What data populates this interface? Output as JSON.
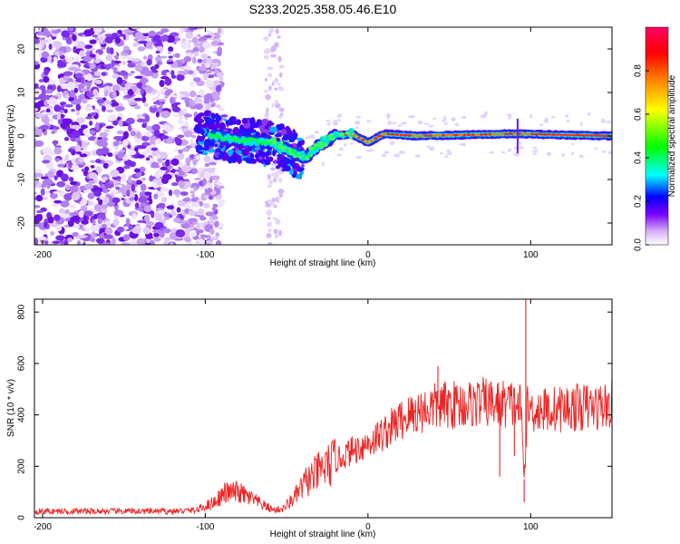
{
  "chart_data": [
    {
      "type": "heatmap",
      "title": "S233.2025.358.05.46.E10",
      "xlabel": "Height of straight line (km)",
      "ylabel": "Frequency (Hz)",
      "xlim": [
        -205,
        150
      ],
      "ylim": [
        -25,
        25
      ],
      "x_ticks": [
        -200,
        -100,
        0,
        100
      ],
      "y_ticks": [
        -20,
        -10,
        0,
        10,
        20
      ],
      "colorbar": {
        "label": "Normalized spectral amplitude",
        "range": [
          0,
          1
        ],
        "ticks": [
          "0.0",
          "0.2",
          "0.4",
          "0.6",
          "0.8"
        ],
        "colormap": [
          "#ffffff",
          "#d8b4f8",
          "#7b00ff",
          "#0000ff",
          "#00ffff",
          "#00ff00",
          "#ffff00",
          "#ff8000",
          "#ff0000",
          "#ff0066"
        ]
      },
      "ridge_frequency_hz": [
        {
          "x": -100,
          "f": 0.5
        },
        {
          "x": -80,
          "f": -1.0
        },
        {
          "x": -60,
          "f": -1.5
        },
        {
          "x": -45,
          "f": -4.0
        },
        {
          "x": -38,
          "f": -5.0
        },
        {
          "x": -30,
          "f": -2.0
        },
        {
          "x": -20,
          "f": 0
        },
        {
          "x": -10,
          "f": 0.5
        },
        {
          "x": 0,
          "f": -1.5
        },
        {
          "x": 10,
          "f": 0.5
        },
        {
          "x": 30,
          "f": 0
        },
        {
          "x": 90,
          "f": 0.5
        },
        {
          "x": 150,
          "f": 0
        }
      ]
    },
    {
      "type": "line",
      "xlabel": "Height of straight line (km)",
      "ylabel": "SNR (10 * v/v)",
      "xlim": [
        -205,
        150
      ],
      "ylim": [
        0,
        850
      ],
      "x_ticks": [
        -200,
        -100,
        0,
        100
      ],
      "y_ticks": [
        0,
        200,
        400,
        600,
        800
      ],
      "color": "#ee2222",
      "series": [
        {
          "name": "SNR",
          "x": [
            -205,
            -180,
            -160,
            -140,
            -120,
            -105,
            -95,
            -88,
            -80,
            -72,
            -65,
            -58,
            -52,
            -45,
            -38,
            -30,
            -20,
            -10,
            0,
            10,
            20,
            30,
            40,
            50,
            60,
            70,
            80,
            85,
            90,
            94,
            96,
            98,
            100,
            110,
            120,
            130,
            140,
            150
          ],
          "y": [
            25,
            25,
            25,
            25,
            25,
            30,
            60,
            95,
            100,
            75,
            50,
            30,
            35,
            80,
            140,
            180,
            220,
            260,
            290,
            330,
            380,
            410,
            430,
            440,
            440,
            450,
            440,
            445,
            440,
            430,
            150,
            430,
            420,
            420,
            425,
            430,
            430,
            440
          ]
        }
      ],
      "spikes": [
        {
          "x": 97,
          "y": 850
        },
        {
          "x": 96,
          "y": 60
        },
        {
          "x": 81,
          "y": 160
        },
        {
          "x": 90,
          "y": 240
        },
        {
          "x": 43,
          "y": 590
        }
      ]
    }
  ]
}
